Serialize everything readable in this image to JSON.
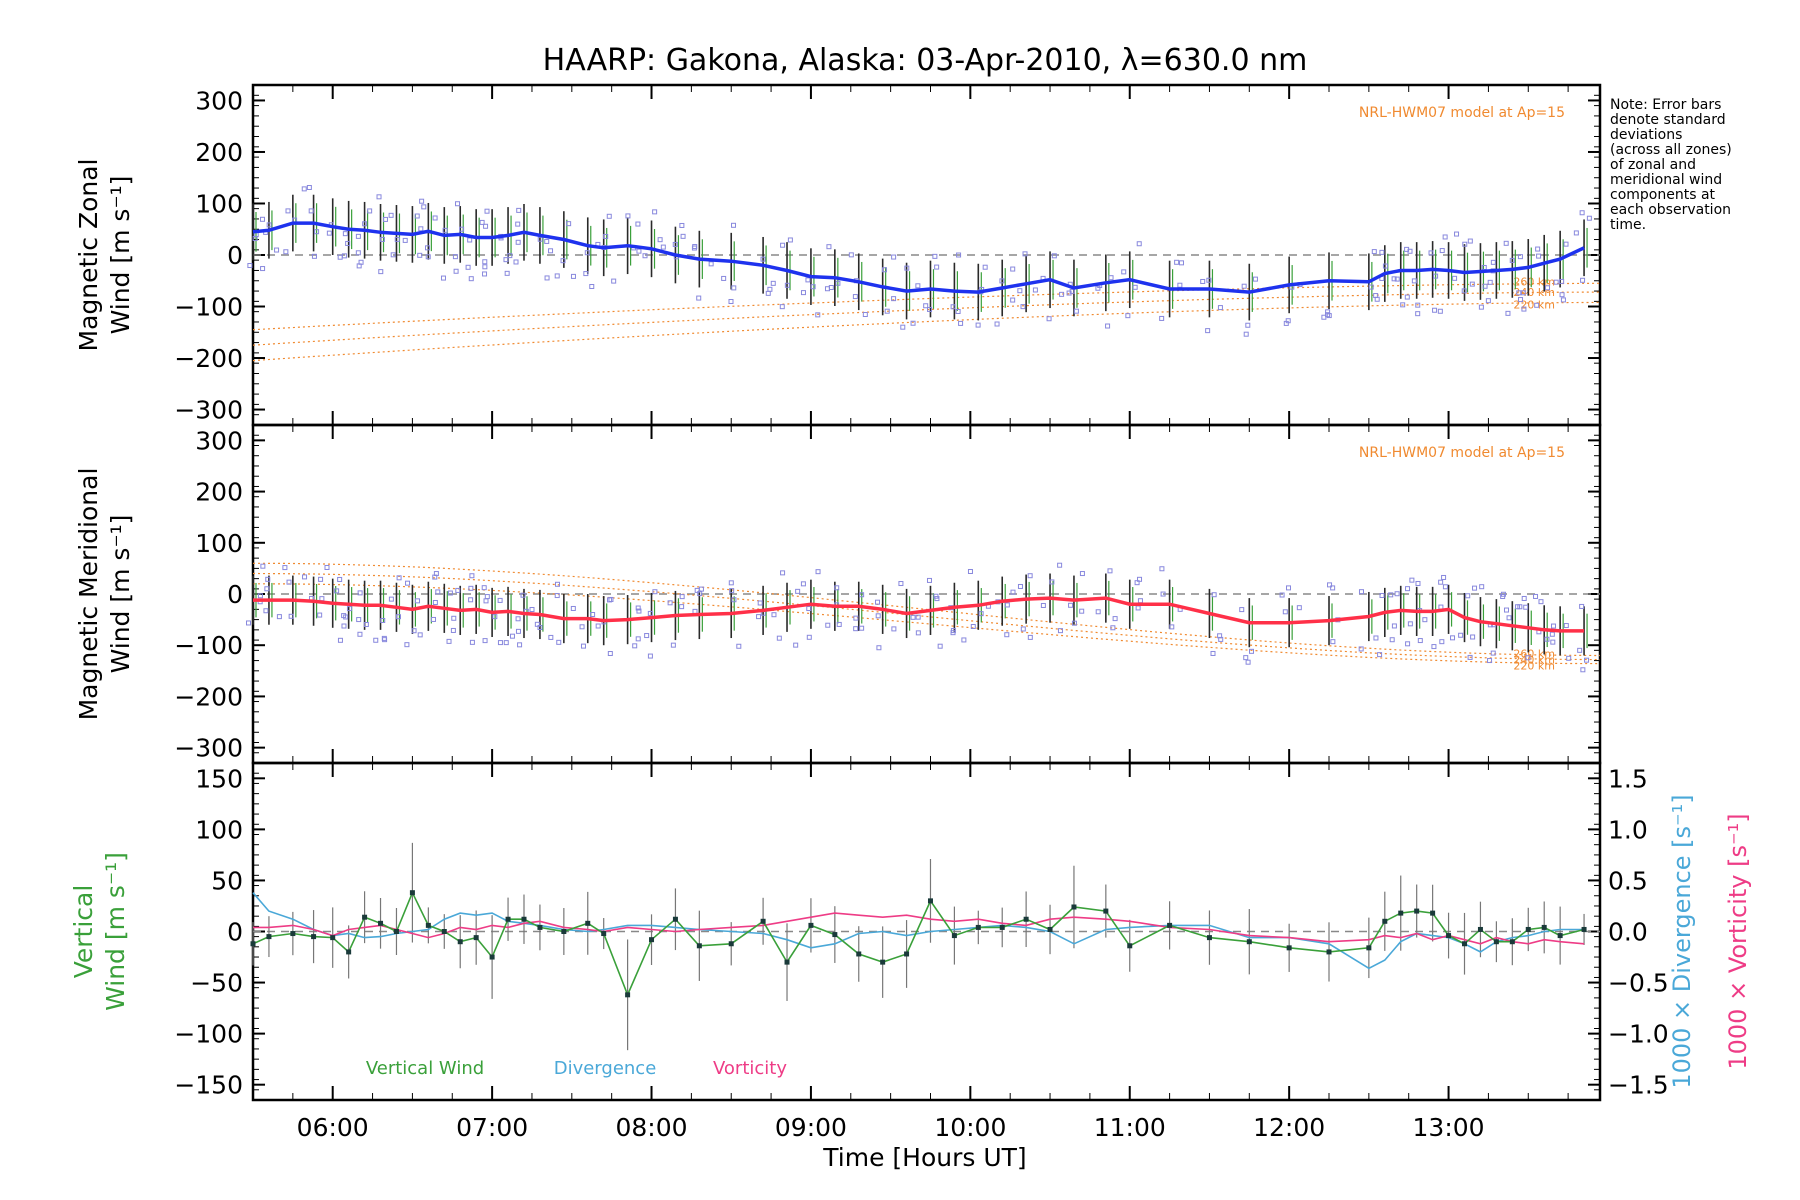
{
  "figure": {
    "title": "HAARP: Gakona,  Alaska: 03-Apr-2010, λ=630.0 nm",
    "note": [
      "Note: Error bars",
      "denote standard",
      "deviations",
      "(across all zones)",
      "of zonal and",
      "meridional wind",
      "components at",
      "each observation",
      "time."
    ],
    "model_label": "NRL-HWM07 model at Ap=15",
    "altitude_labels": [
      "260 km",
      "240 km",
      "220 km"
    ],
    "xlabel": "Time [Hours UT]",
    "xticks": [
      "06:00",
      "07:00",
      "08:00",
      "09:00",
      "10:00",
      "11:00",
      "12:00",
      "13:00"
    ],
    "legend": {
      "vertical": "Vertical Wind",
      "divergence": "Divergence",
      "vorticity": "Vorticity"
    },
    "colors": {
      "zonal": "#1e32ee",
      "meridional": "#ff3048",
      "vertical": "#3aa03a",
      "divergence": "#4aa8d8",
      "vorticity": "#ee3c86",
      "model": "#f08a30",
      "samples": "#8888dd",
      "errorbar": "#2a2a2a",
      "zero": "#888888"
    }
  },
  "chart_data": [
    {
      "type": "line",
      "panel": "zonal",
      "ylabel": [
        "Magnetic Zonal",
        "Wind [m s⁻¹]"
      ],
      "ylim": [
        -330,
        330
      ],
      "yticks": [
        "300",
        "200",
        "100",
        "0",
        "−100",
        "−200",
        "−300"
      ],
      "x_hours": [
        5.5,
        5.6,
        5.75,
        5.88,
        6.0,
        6.1,
        6.2,
        6.3,
        6.4,
        6.5,
        6.6,
        6.7,
        6.8,
        6.9,
        7.0,
        7.1,
        7.2,
        7.3,
        7.45,
        7.6,
        7.7,
        7.85,
        8.0,
        8.15,
        8.3,
        8.5,
        8.7,
        8.85,
        9.0,
        9.15,
        9.3,
        9.45,
        9.6,
        9.75,
        9.9,
        10.05,
        10.2,
        10.35,
        10.5,
        10.65,
        10.85,
        11.0,
        11.25,
        11.5,
        11.75,
        12.0,
        12.25,
        12.5,
        12.6,
        12.7,
        12.8,
        12.9,
        13.0,
        13.1,
        13.2,
        13.3,
        13.4,
        13.5,
        13.6,
        13.7,
        13.85
      ],
      "series": [
        {
          "name": "Zonal wind",
          "values": [
            45,
            48,
            62,
            62,
            55,
            50,
            48,
            44,
            42,
            40,
            46,
            38,
            40,
            34,
            34,
            38,
            44,
            38,
            30,
            18,
            14,
            18,
            12,
            0,
            -8,
            -12,
            -20,
            -30,
            -42,
            -44,
            -52,
            -62,
            -70,
            -66,
            -70,
            -72,
            -64,
            -56,
            -48,
            -64,
            -54,
            -48,
            -66,
            -66,
            -72,
            -58,
            -50,
            -52,
            -36,
            -30,
            -30,
            -28,
            -30,
            -34,
            -32,
            -30,
            -28,
            -24,
            -16,
            -8,
            14
          ]
        }
      ],
      "model_curves": [
        {
          "altitude": "260 km",
          "y_start": -145,
          "y_end": -55
        },
        {
          "altitude": "240 km",
          "y_start": -175,
          "y_end": -72
        },
        {
          "altitude": "220 km",
          "y_start": -205,
          "y_end": -92
        }
      ]
    },
    {
      "type": "line",
      "panel": "meridional",
      "ylabel": [
        "Magnetic Meridional",
        "Wind [m s⁻¹]"
      ],
      "ylim": [
        -330,
        330
      ],
      "yticks": [
        "300",
        "200",
        "100",
        "0",
        "−100",
        "−200",
        "−300"
      ],
      "x_hours": [
        5.5,
        5.6,
        5.75,
        5.88,
        6.0,
        6.1,
        6.2,
        6.3,
        6.4,
        6.5,
        6.6,
        6.7,
        6.8,
        6.9,
        7.0,
        7.1,
        7.2,
        7.3,
        7.45,
        7.6,
        7.7,
        7.85,
        8.0,
        8.15,
        8.3,
        8.5,
        8.7,
        8.85,
        9.0,
        9.15,
        9.3,
        9.45,
        9.6,
        9.75,
        9.9,
        10.05,
        10.2,
        10.35,
        10.5,
        10.65,
        10.85,
        11.0,
        11.25,
        11.5,
        11.75,
        12.0,
        12.25,
        12.5,
        12.6,
        12.7,
        12.8,
        12.9,
        13.0,
        13.1,
        13.2,
        13.3,
        13.4,
        13.5,
        13.6,
        13.7,
        13.85
      ],
      "series": [
        {
          "name": "Meridional wind",
          "values": [
            -12,
            -12,
            -12,
            -14,
            -18,
            -20,
            -22,
            -22,
            -26,
            -30,
            -24,
            -28,
            -32,
            -30,
            -36,
            -34,
            -38,
            -40,
            -48,
            -48,
            -52,
            -50,
            -46,
            -42,
            -40,
            -38,
            -32,
            -26,
            -20,
            -24,
            -24,
            -30,
            -38,
            -32,
            -26,
            -22,
            -14,
            -10,
            -8,
            -12,
            -8,
            -20,
            -20,
            -38,
            -56,
            -56,
            -52,
            -44,
            -36,
            -32,
            -34,
            -34,
            -30,
            -46,
            -54,
            -58,
            -62,
            -66,
            -70,
            -72,
            -72
          ]
        }
      ],
      "model_curves": [
        {
          "altitude": "260 km",
          "y_start": 60,
          "y_end": -120
        },
        {
          "altitude": "240 km",
          "y_start": 40,
          "y_end": -128
        },
        {
          "altitude": "220 km",
          "y_start": 20,
          "y_end": -136
        }
      ]
    },
    {
      "type": "line",
      "panel": "vertical",
      "ylabel": [
        "Vertical",
        "Wind [m s⁻¹]"
      ],
      "ylim": [
        -165,
        165
      ],
      "yticks": [
        "150",
        "100",
        "50",
        "0",
        "−50",
        "−100",
        "−150"
      ],
      "y2label": [
        "1000 × Divergence [s⁻¹]",
        "1000 × Vorticity [s⁻¹]"
      ],
      "y2lim": [
        -1.65,
        1.65
      ],
      "y2ticks": [
        "1.5",
        "1.0",
        "0.5",
        "0.0",
        "−0.5",
        "−1.0",
        "−1.5"
      ],
      "x_hours": [
        5.5,
        5.6,
        5.75,
        5.88,
        6.0,
        6.1,
        6.2,
        6.3,
        6.4,
        6.5,
        6.6,
        6.7,
        6.8,
        6.9,
        7.0,
        7.1,
        7.2,
        7.3,
        7.45,
        7.6,
        7.7,
        7.85,
        8.0,
        8.15,
        8.3,
        8.5,
        8.7,
        8.85,
        9.0,
        9.15,
        9.3,
        9.45,
        9.6,
        9.75,
        9.9,
        10.05,
        10.2,
        10.35,
        10.5,
        10.65,
        10.85,
        11.0,
        11.25,
        11.5,
        11.75,
        12.0,
        12.25,
        12.5,
        12.6,
        12.7,
        12.8,
        12.9,
        13.0,
        13.1,
        13.2,
        13.3,
        13.4,
        13.5,
        13.6,
        13.7,
        13.85
      ],
      "series": [
        {
          "name": "Vertical Wind",
          "values": [
            -12,
            -5,
            -2,
            -5,
            -6,
            -20,
            14,
            8,
            0,
            38,
            6,
            0,
            -10,
            -6,
            -25,
            12,
            12,
            4,
            0,
            8,
            -2,
            -62,
            -8,
            12,
            -14,
            -12,
            10,
            -30,
            6,
            -3,
            -22,
            -30,
            -22,
            30,
            -4,
            4,
            4,
            12,
            2,
            24,
            20,
            -14,
            6,
            -6,
            -10,
            -16,
            -20,
            -16,
            10,
            18,
            20,
            18,
            -4,
            -12,
            2,
            -10,
            -10,
            2,
            4,
            -4,
            2
          ]
        },
        {
          "name": "Divergence",
          "values": [
            0.38,
            0.2,
            0.12,
            0.02,
            -0.04,
            -0.02,
            -0.06,
            -0.05,
            -0.02,
            0.0,
            0.02,
            0.12,
            0.18,
            0.16,
            0.18,
            0.1,
            0.08,
            0.06,
            0.02,
            0.0,
            0.02,
            0.06,
            0.06,
            0.04,
            0.02,
            0.0,
            -0.02,
            -0.08,
            -0.16,
            -0.12,
            -0.02,
            0.0,
            -0.04,
            0.0,
            0.02,
            0.04,
            0.06,
            0.04,
            0.0,
            -0.12,
            0.02,
            0.04,
            0.06,
            0.06,
            -0.06,
            -0.06,
            -0.12,
            -0.36,
            -0.28,
            -0.1,
            -0.02,
            -0.04,
            -0.06,
            -0.12,
            -0.2,
            -0.1,
            -0.06,
            -0.04,
            0.0,
            0.02,
            0.02
          ]
        },
        {
          "name": "Vorticity",
          "values": [
            0.04,
            0.04,
            0.06,
            0.02,
            -0.04,
            0.02,
            0.04,
            0.06,
            0.02,
            -0.02,
            -0.06,
            -0.02,
            0.04,
            0.02,
            0.06,
            0.04,
            0.08,
            0.1,
            0.04,
            0.02,
            0.0,
            0.04,
            0.02,
            0.0,
            0.02,
            0.04,
            0.06,
            0.1,
            0.14,
            0.18,
            0.16,
            0.14,
            0.16,
            0.12,
            0.1,
            0.12,
            0.08,
            0.06,
            0.12,
            0.14,
            0.12,
            0.1,
            0.04,
            0.02,
            -0.04,
            -0.06,
            -0.1,
            -0.08,
            -0.04,
            -0.06,
            -0.02,
            -0.08,
            -0.04,
            -0.08,
            -0.12,
            -0.06,
            -0.1,
            -0.12,
            -0.08,
            -0.1,
            -0.12
          ]
        }
      ]
    }
  ]
}
